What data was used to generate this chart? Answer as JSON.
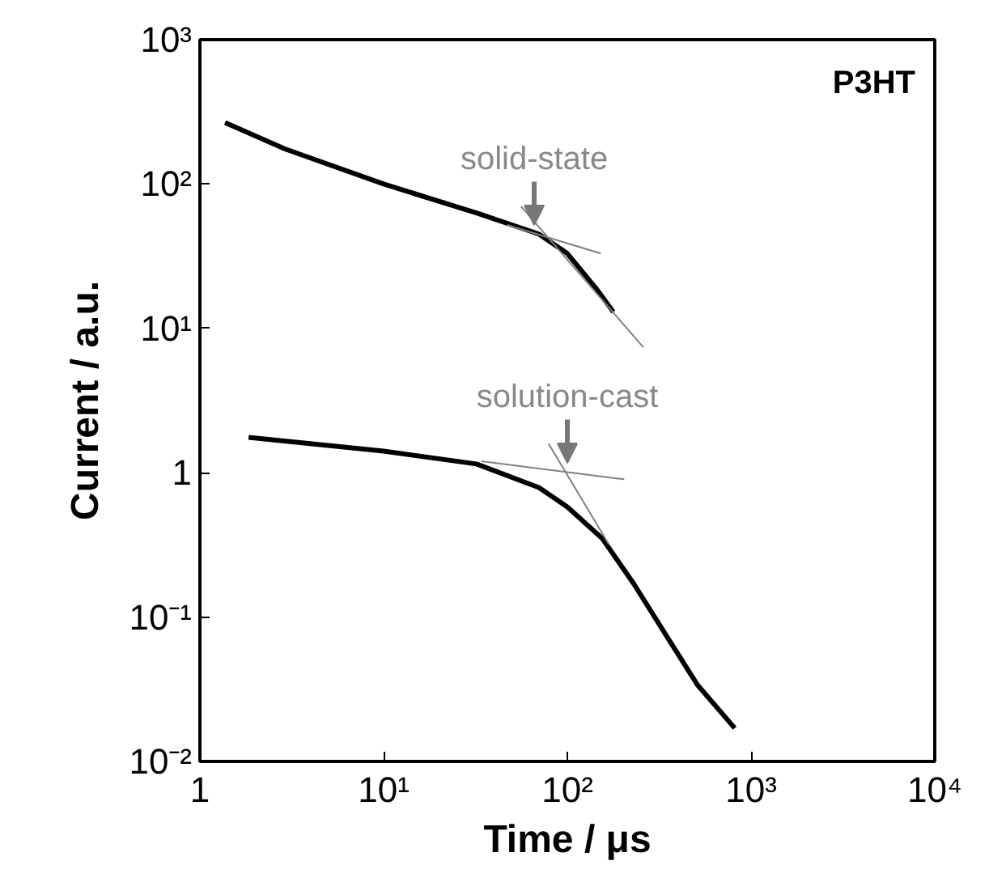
{
  "chart_data": {
    "type": "line",
    "xlabel": "Time / μs",
    "ylabel": "Current / a.u.",
    "log": "xy",
    "grid": false,
    "marker": "none",
    "line_style": "solid",
    "xlim": [
      1,
      10000
    ],
    "ylim": [
      0.01,
      1000
    ],
    "xticks": [
      {
        "value": 1,
        "label": "1"
      },
      {
        "value": 10,
        "label": "10¹"
      },
      {
        "value": 100,
        "label": "10²"
      },
      {
        "value": 1000,
        "label": "10³"
      },
      {
        "value": 10000,
        "label": "10⁴"
      }
    ],
    "yticks": [
      {
        "value": 0.01,
        "label": "10⁻²"
      },
      {
        "value": 0.1,
        "label": "10⁻¹"
      },
      {
        "value": 1,
        "label": "1"
      },
      {
        "value": 10,
        "label": "10¹"
      },
      {
        "value": 100,
        "label": "10²"
      },
      {
        "value": 1000,
        "label": "10³"
      }
    ],
    "series": [
      {
        "color": "#000000",
        "x": [
          1.37,
          2.9,
          10,
          32,
          70,
          100,
          143,
          178
        ],
        "values": [
          266,
          175,
          100,
          63,
          45,
          33,
          19,
          13
        ]
      },
      {
        "color": "#000000",
        "x": [
          1.84,
          10,
          32,
          70,
          100,
          155,
          230,
          340,
          510,
          815
        ],
        "values": [
          1.76,
          1.41,
          1.15,
          0.79,
          0.58,
          0.35,
          0.17,
          0.077,
          0.034,
          0.017
        ]
      },
      {
        "type": "line",
        "color": "#808080",
        "x": [
          56,
          259
        ],
        "values": [
          70,
          7.4
        ]
      },
      {
        "type": "line",
        "color": "#808080",
        "x": [
          47,
          152
        ],
        "values": [
          52,
          33
        ]
      },
      {
        "type": "line",
        "color": "#808080",
        "x": [
          34,
          204
        ],
        "values": [
          1.2,
          0.9
        ]
      },
      {
        "type": "line",
        "color": "#808080",
        "x": [
          79,
          168
        ],
        "values": [
          1.59,
          0.32
        ]
      }
    ],
    "annotations": [
      "P3HT",
      {
        "text": "solid-state",
        "x": 66,
        "y": 52
      },
      {
        "text": "solution-cast",
        "x": 100,
        "y": 1.17
      }
    ]
  }
}
